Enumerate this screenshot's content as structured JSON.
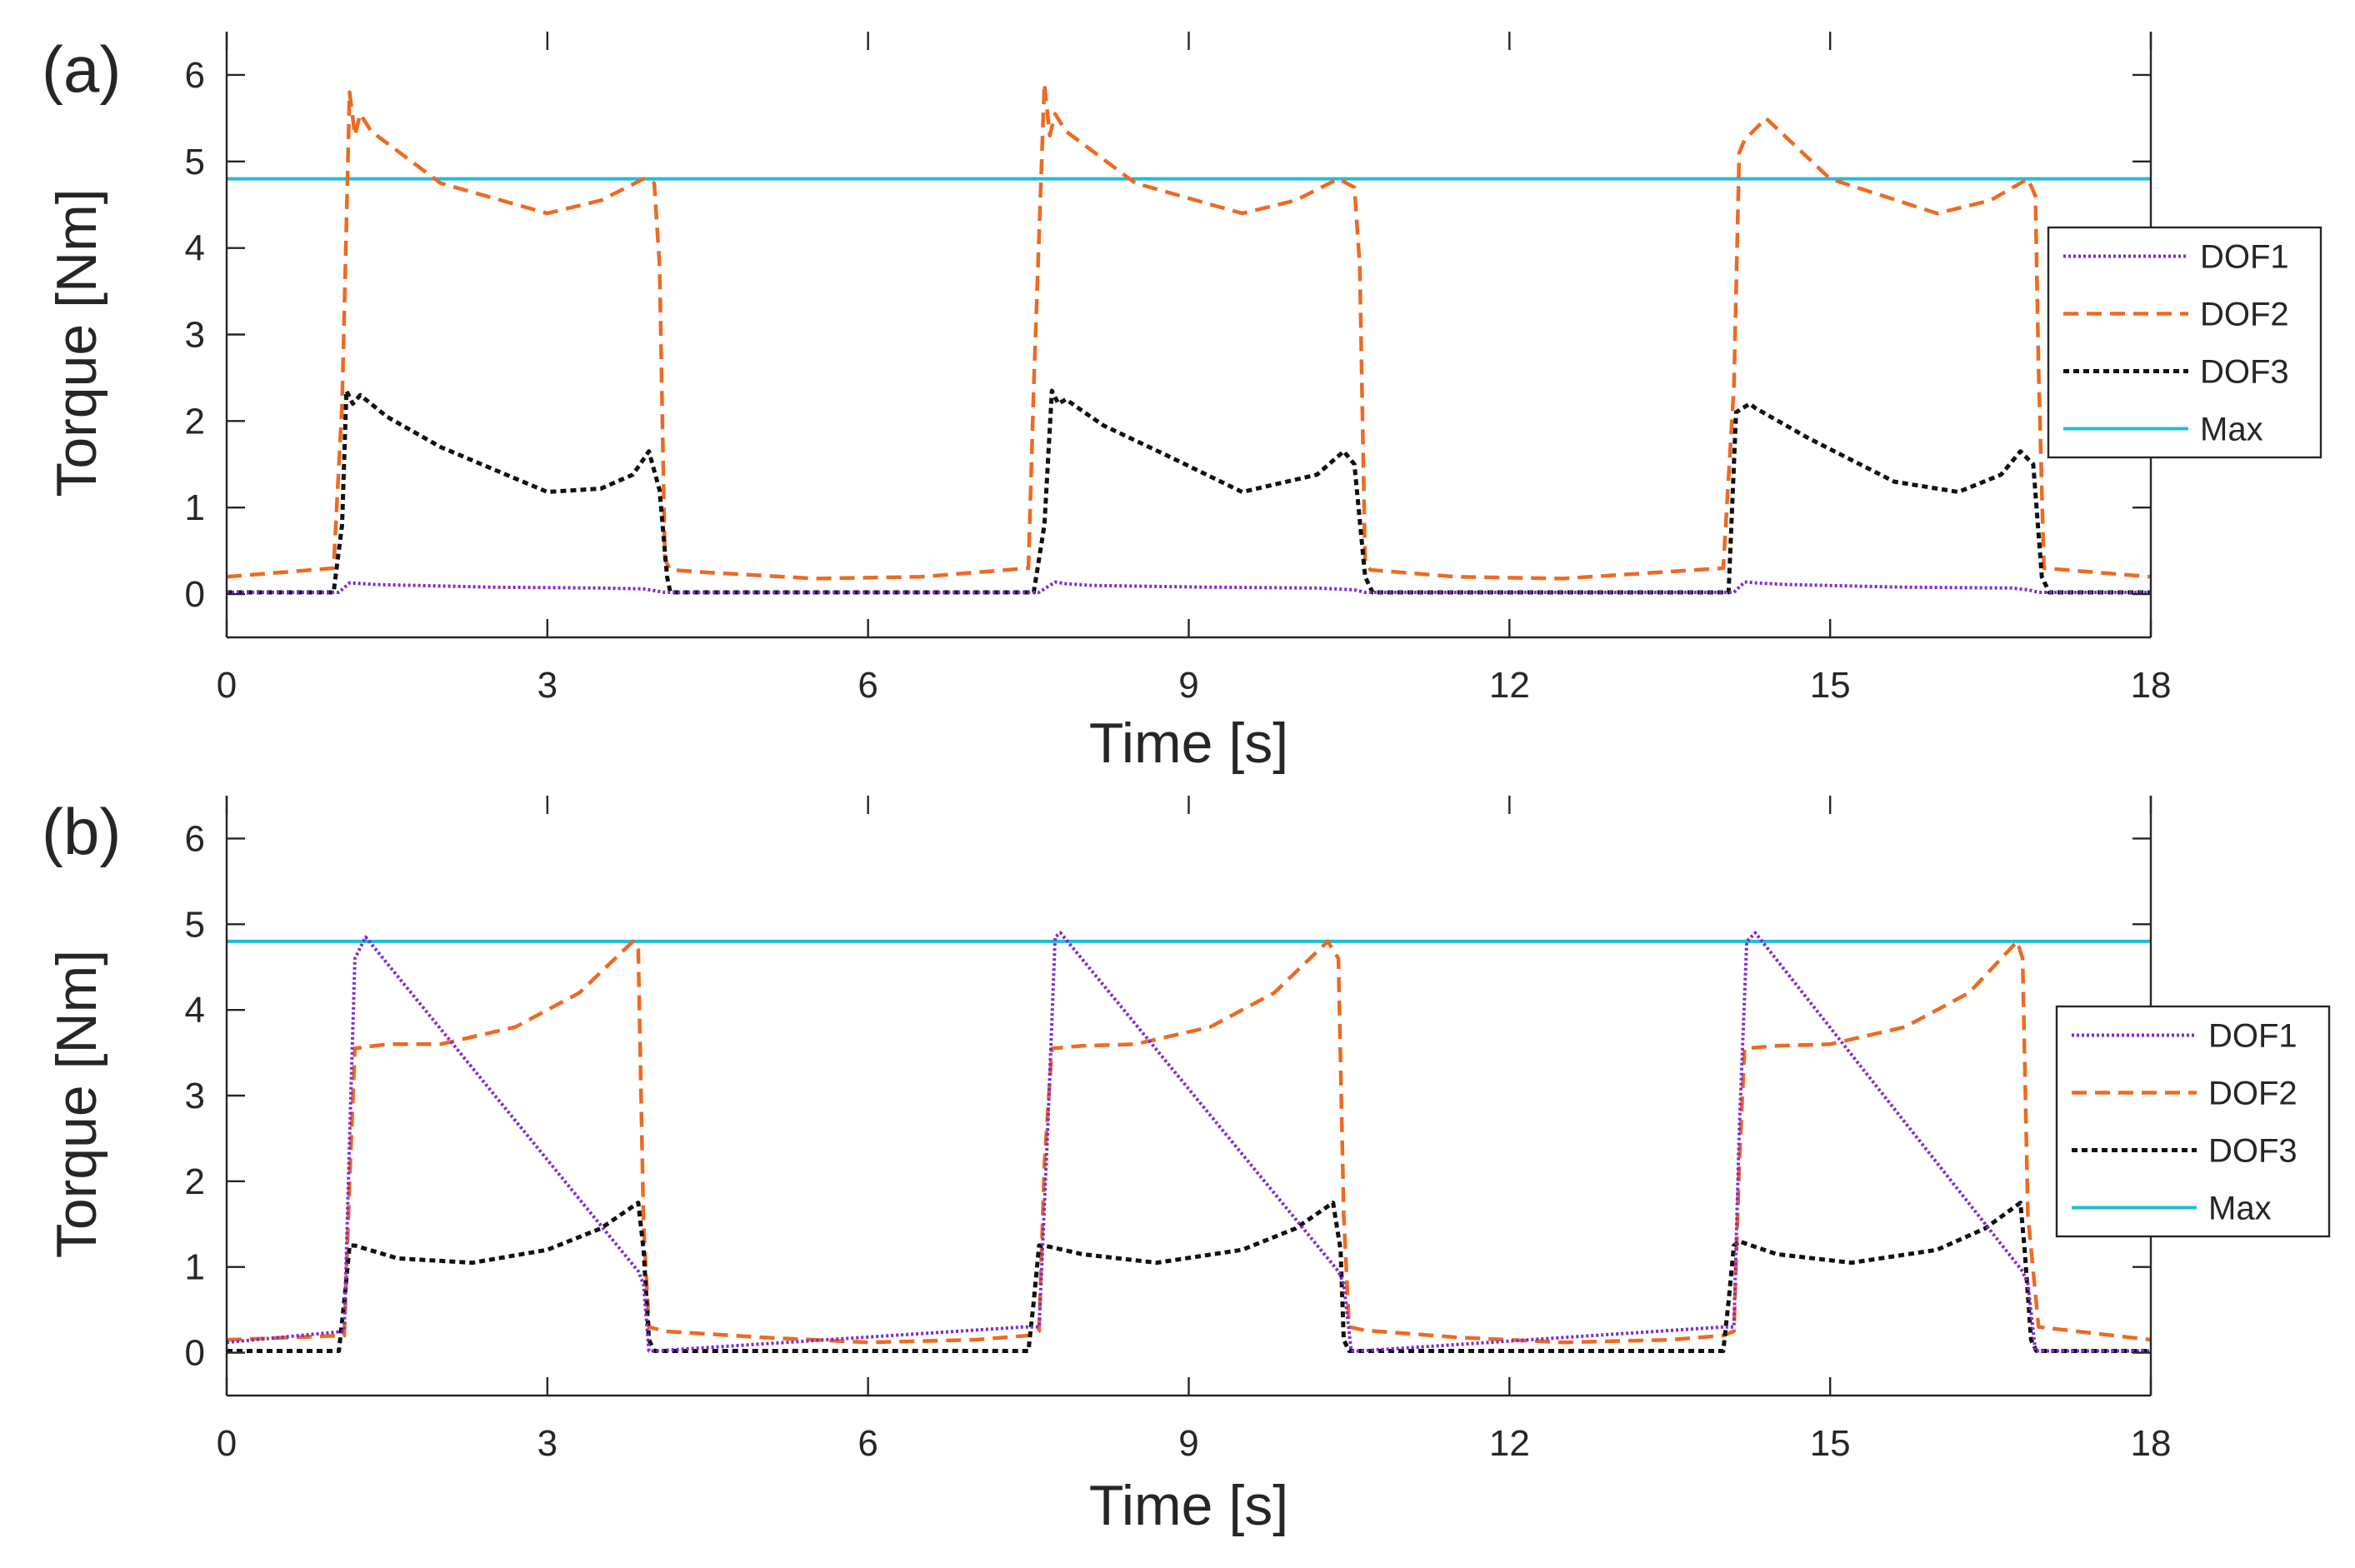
{
  "styles": {
    "DOF1": {
      "color": "#7E2BD6",
      "dash": "3,3",
      "width": 4
    },
    "DOF2": {
      "color": "#ED6A22",
      "dash": "18,10",
      "width": 4.5
    },
    "DOF3": {
      "color": "#111111",
      "dash": "7,5",
      "width": 5
    },
    "Max": {
      "color": "#1FBDD7",
      "dash": "",
      "width": 4
    }
  },
  "chart_data": [
    {
      "type": "line",
      "panel_label": "(a)",
      "xlabel": "Time [s]",
      "ylabel": "Torque [Nm]",
      "xlim": [
        0,
        18
      ],
      "ylim": [
        -0.5,
        6.5
      ],
      "xticks": [
        0,
        3,
        6,
        9,
        12,
        15,
        18
      ],
      "yticks": [
        0,
        1,
        2,
        3,
        4,
        5,
        6
      ],
      "legend_position": "right",
      "series": [
        {
          "name": "DOF1",
          "x": [
            0,
            1.05,
            1.15,
            1.4,
            2.5,
            3.5,
            3.9,
            4.0,
            4.1,
            7.6,
            7.75,
            7.85,
            8.1,
            9.2,
            10.2,
            10.55,
            10.65,
            10.7,
            14.1,
            14.2,
            14.3,
            14.6,
            15.7,
            16.7,
            16.85,
            16.95,
            18
          ],
          "y": [
            0.02,
            0.02,
            0.13,
            0.11,
            0.08,
            0.07,
            0.06,
            0.04,
            0.02,
            0.02,
            0.14,
            0.12,
            0.1,
            0.08,
            0.07,
            0.05,
            0.02,
            0.02,
            0.02,
            0.14,
            0.13,
            0.11,
            0.08,
            0.07,
            0.05,
            0.02,
            0.02
          ]
        },
        {
          "name": "DOF2",
          "x": [
            0,
            1.0,
            1.08,
            1.15,
            1.2,
            1.25,
            1.35,
            2.0,
            3.0,
            3.5,
            3.9,
            4.0,
            4.05,
            4.1,
            4.15,
            4.5,
            5.5,
            6.5,
            7.5,
            7.55,
            7.65,
            7.7,
            7.75,
            7.85,
            8.5,
            9.5,
            10.0,
            10.4,
            10.55,
            10.6,
            10.65,
            10.7,
            11.5,
            12.5,
            14.0,
            14.1,
            14.15,
            14.2,
            14.4,
            15.0,
            16.0,
            16.5,
            16.85,
            16.92,
            16.95,
            17.0,
            18
          ],
          "y": [
            0.2,
            0.3,
            2.2,
            5.8,
            5.3,
            5.55,
            5.35,
            4.75,
            4.4,
            4.55,
            4.8,
            4.75,
            3.8,
            0.4,
            0.28,
            0.25,
            0.18,
            0.2,
            0.3,
            2.4,
            5.9,
            5.3,
            5.55,
            5.35,
            4.75,
            4.4,
            4.55,
            4.8,
            4.7,
            3.8,
            0.35,
            0.28,
            0.2,
            0.18,
            0.3,
            2.4,
            5.1,
            5.25,
            5.5,
            4.8,
            4.4,
            4.55,
            4.8,
            4.6,
            2.6,
            0.3,
            0.2
          ]
        },
        {
          "name": "DOF3",
          "x": [
            0,
            1.0,
            1.08,
            1.12,
            1.18,
            1.25,
            1.5,
            2.0,
            3.0,
            3.5,
            3.8,
            3.95,
            4.05,
            4.12,
            4.15,
            7.55,
            7.65,
            7.72,
            7.78,
            7.85,
            8.2,
            8.8,
            9.5,
            10.2,
            10.45,
            10.55,
            10.65,
            10.72,
            10.75,
            14.05,
            14.12,
            14.18,
            14.25,
            14.3,
            14.8,
            15.6,
            16.2,
            16.6,
            16.78,
            16.9,
            16.98,
            17.05,
            18
          ],
          "y": [
            0.02,
            0.02,
            0.8,
            2.35,
            2.2,
            2.3,
            2.05,
            1.7,
            1.18,
            1.22,
            1.38,
            1.65,
            1.2,
            0.2,
            0.02,
            0.02,
            0.8,
            2.35,
            2.2,
            2.25,
            1.95,
            1.6,
            1.18,
            1.38,
            1.65,
            1.5,
            0.2,
            0.02,
            0.02,
            0.02,
            2.1,
            2.15,
            2.2,
            2.15,
            1.8,
            1.3,
            1.18,
            1.38,
            1.65,
            1.5,
            0.2,
            0.02,
            0.02
          ]
        },
        {
          "name": "Max",
          "x": [
            0,
            18
          ],
          "y": [
            4.8,
            4.8
          ]
        }
      ]
    },
    {
      "type": "line",
      "panel_label": "(b)",
      "xlabel": "Time [s]",
      "ylabel": "Torque [Nm]",
      "xlim": [
        0,
        18
      ],
      "ylim": [
        -0.5,
        6.5
      ],
      "xticks": [
        0,
        3,
        6,
        9,
        12,
        15,
        18
      ],
      "yticks": [
        0,
        1,
        2,
        3,
        4,
        5,
        6
      ],
      "legend_position": "right",
      "series": [
        {
          "name": "DOF1",
          "x": [
            0,
            1.1,
            1.15,
            1.2,
            1.3,
            3.85,
            3.9,
            3.95,
            4.0,
            7.45,
            7.6,
            7.68,
            7.75,
            7.8,
            10.4,
            10.45,
            10.52,
            10.6,
            14.0,
            14.1,
            14.15,
            14.22,
            14.3,
            16.8,
            16.85,
            16.92,
            17.0,
            18
          ],
          "y": [
            0.12,
            0.25,
            2.5,
            4.6,
            4.85,
            0.95,
            0.8,
            0.02,
            0.02,
            0.3,
            0.3,
            2.6,
            4.85,
            4.9,
            0.95,
            0.8,
            0.02,
            0.02,
            0.3,
            0.3,
            2.6,
            4.8,
            4.9,
            0.95,
            0.8,
            0.02,
            0.02,
            0.02
          ]
        },
        {
          "name": "DOF2",
          "x": [
            0,
            1.1,
            1.15,
            1.2,
            1.5,
            2.0,
            2.7,
            3.3,
            3.8,
            3.85,
            3.9,
            3.95,
            4.1,
            5.0,
            6.0,
            7.0,
            7.5,
            7.6,
            7.65,
            7.72,
            8.0,
            8.5,
            9.2,
            9.8,
            10.3,
            10.4,
            10.45,
            10.5,
            10.65,
            11.5,
            12.5,
            13.5,
            14.0,
            14.1,
            14.15,
            14.2,
            14.5,
            15.0,
            15.7,
            16.3,
            16.75,
            16.8,
            16.85,
            16.95,
            18
          ],
          "y": [
            0.15,
            0.2,
            2.0,
            3.55,
            3.6,
            3.6,
            3.8,
            4.2,
            4.8,
            4.7,
            1.5,
            0.3,
            0.25,
            0.18,
            0.12,
            0.15,
            0.2,
            0.25,
            2.2,
            3.55,
            3.58,
            3.6,
            3.8,
            4.2,
            4.8,
            4.6,
            1.6,
            0.3,
            0.26,
            0.18,
            0.12,
            0.15,
            0.2,
            0.25,
            2.2,
            3.55,
            3.58,
            3.6,
            3.8,
            4.2,
            4.8,
            4.6,
            1.6,
            0.3,
            0.15
          ]
        },
        {
          "name": "DOF3",
          "x": [
            0,
            1.05,
            1.1,
            1.15,
            1.2,
            1.6,
            2.3,
            3.0,
            3.5,
            3.85,
            3.9,
            3.95,
            4.0,
            7.5,
            7.55,
            7.6,
            7.65,
            8.0,
            8.7,
            9.5,
            10.0,
            10.35,
            10.42,
            10.45,
            10.5,
            14.0,
            14.05,
            14.1,
            14.15,
            14.5,
            15.2,
            16.0,
            16.45,
            16.78,
            16.82,
            16.88,
            16.93,
            18
          ],
          "y": [
            0.02,
            0.02,
            0.6,
            1.25,
            1.25,
            1.1,
            1.05,
            1.2,
            1.45,
            1.75,
            1.2,
            0.15,
            0.02,
            0.02,
            0.6,
            1.25,
            1.25,
            1.15,
            1.05,
            1.2,
            1.45,
            1.75,
            1.2,
            0.15,
            0.02,
            0.02,
            0.6,
            1.25,
            1.3,
            1.15,
            1.05,
            1.2,
            1.45,
            1.75,
            1.2,
            0.15,
            0.02,
            0.02
          ]
        },
        {
          "name": "Max",
          "x": [
            0,
            18
          ],
          "y": [
            4.8,
            4.8
          ]
        }
      ]
    }
  ]
}
